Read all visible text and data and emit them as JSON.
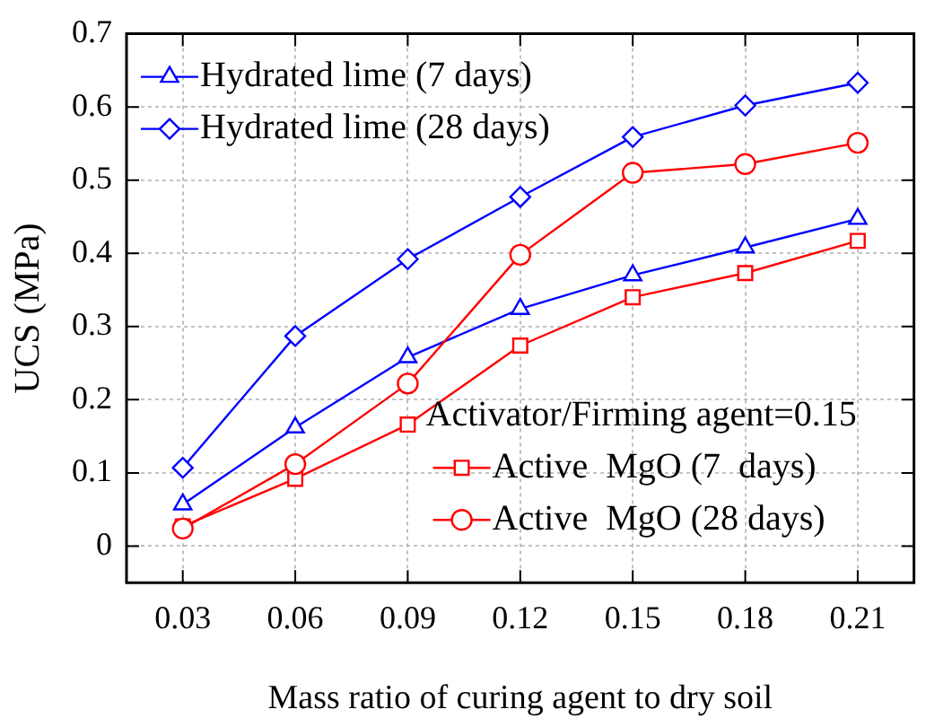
{
  "chart_data": {
    "type": "line",
    "xlabel": "Mass ratio of curing agent to dry soil",
    "ylabel": "UCS (MPa)",
    "x": [
      0.03,
      0.06,
      0.09,
      0.12,
      0.15,
      0.18,
      0.21
    ],
    "xlim": [
      0.015,
      0.225
    ],
    "xticks": [
      0.03,
      0.06,
      0.09,
      0.12,
      0.15,
      0.18,
      0.21
    ],
    "ylim": [
      -0.05,
      0.7
    ],
    "yticks": [
      0,
      0.1,
      0.2,
      0.3,
      0.4,
      0.5,
      0.6,
      0.7
    ],
    "grid": true,
    "legend": "top left",
    "legend_title": "Activator/Firming agent=0.15",
    "line_style": "solid",
    "series": [
      {
        "name": "Hydrated lime (7 days)",
        "color": "#0000ff",
        "marker": "triangle",
        "values": [
          0.057,
          0.162,
          0.258,
          0.324,
          0.37,
          0.408,
          0.447
        ]
      },
      {
        "name": "Hydrated lime (28 days)",
        "color": "#0000ff",
        "marker": "diamond",
        "values": [
          0.107,
          0.287,
          0.392,
          0.477,
          0.559,
          0.602,
          0.633
        ]
      },
      {
        "name": "Active  MgO (7  days)",
        "color": "#ff0000",
        "marker": "square",
        "values": [
          0.027,
          0.092,
          0.166,
          0.274,
          0.34,
          0.373,
          0.417
        ]
      },
      {
        "name": "Active  MgO (28 days)",
        "color": "#ff0000",
        "marker": "circle",
        "values": [
          0.024,
          0.112,
          0.222,
          0.398,
          0.51,
          0.522,
          0.551
        ]
      }
    ]
  }
}
